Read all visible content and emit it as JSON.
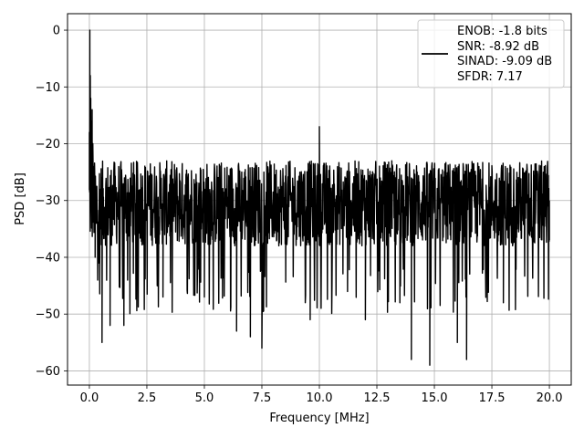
{
  "chart_data": {
    "type": "line",
    "title": "",
    "xlabel": "Frequency [MHz]",
    "ylabel": "PSD [dB]",
    "xlim": [
      -0.95,
      20.95
    ],
    "ylim": [
      -62.5,
      2.9
    ],
    "xticks": [
      0.0,
      2.5,
      5.0,
      7.5,
      10.0,
      12.5,
      15.0,
      17.5,
      20.0
    ],
    "xtick_labels": [
      "0.0",
      "2.5",
      "5.0",
      "7.5",
      "10.0",
      "12.5",
      "15.0",
      "17.5",
      "20.0"
    ],
    "yticks": [
      0,
      -10,
      -20,
      -30,
      -40,
      -50,
      -60
    ],
    "ytick_labels": [
      "0",
      "−10",
      "−20",
      "−30",
      "−40",
      "−50",
      "−60"
    ],
    "grid": true,
    "legend_position": "top-right",
    "legend_lines": [
      "ENOB: -1.8 bits",
      "SNR: -8.92 dB",
      "SINAD: -9.09 dB",
      "SFDR: 7.17"
    ],
    "series": [
      {
        "color": "#000000",
        "noise_floor_db": -31,
        "noise_band_db": [
          -38,
          -23
        ],
        "x": [
          0.0,
          0.02,
          0.04,
          0.06,
          0.08,
          0.1,
          0.12,
          0.15,
          0.2,
          0.25,
          0.3,
          0.4,
          0.5,
          0.55,
          0.6,
          0.7,
          0.9,
          1.0,
          1.5,
          2.0,
          3.2,
          5.0,
          6.4,
          7.0,
          7.5,
          9.6,
          10.0,
          10.05,
          12.0,
          13.5,
          14.0,
          14.8,
          16.0,
          16.4,
          18.0,
          20.0
        ],
        "y": [
          -18,
          0,
          -8,
          -12,
          -16,
          -18,
          -14,
          -20,
          -24,
          -40,
          -34,
          -41,
          -35,
          -55,
          -36,
          -33,
          -52,
          -30,
          -52,
          -31,
          -47,
          -47,
          -53,
          -54,
          -56,
          -51,
          -17,
          -27,
          -51,
          -48,
          -58,
          -59,
          -55,
          -58,
          -48,
          -37
        ]
      }
    ]
  }
}
